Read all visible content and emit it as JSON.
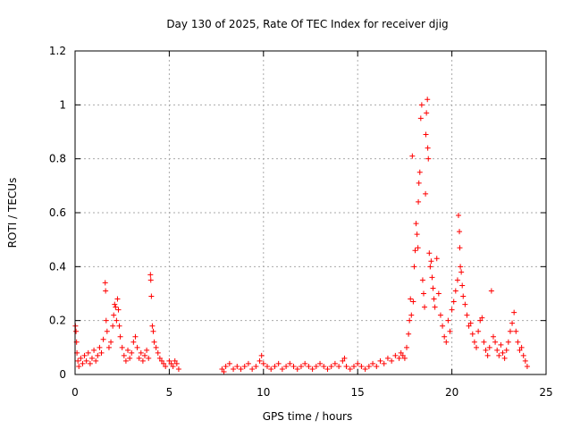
{
  "chart_data": {
    "type": "scatter",
    "title": "Day 130 of 2025, Rate Of TEC Index for receiver djig",
    "xlabel": "GPS time / hours",
    "ylabel": "ROTI / TECUs",
    "xlim": [
      0,
      25
    ],
    "ylim": [
      0,
      1.2
    ],
    "xticks": [
      0,
      5,
      10,
      15,
      20,
      25
    ],
    "xtick_labels": [
      "0",
      "5",
      "10",
      "15",
      "20",
      "25"
    ],
    "yticks": [
      0,
      0.2,
      0.4,
      0.6,
      0.8,
      1,
      1.2
    ],
    "ytick_labels": [
      "0",
      "0.2",
      "0.4",
      "0.6",
      "0.8",
      "1",
      "1.2"
    ],
    "grid": true,
    "marker": "+",
    "colors": {
      "series": "#ff0000",
      "grid": "#aaaaaa",
      "axis": "#000000"
    },
    "series": [
      {
        "points": [
          [
            0.02,
            0.18
          ],
          [
            0.05,
            0.16
          ],
          [
            0.08,
            0.12
          ],
          [
            0.1,
            0.08
          ],
          [
            0.15,
            0.05
          ],
          [
            0.2,
            0.03
          ],
          [
            0.3,
            0.06
          ],
          [
            0.4,
            0.04
          ],
          [
            0.5,
            0.07
          ],
          [
            0.6,
            0.05
          ],
          [
            0.7,
            0.08
          ],
          [
            0.8,
            0.04
          ],
          [
            0.9,
            0.06
          ],
          [
            1.0,
            0.09
          ],
          [
            1.1,
            0.05
          ],
          [
            1.2,
            0.07
          ],
          [
            1.3,
            0.1
          ],
          [
            1.4,
            0.08
          ],
          [
            1.5,
            0.13
          ],
          [
            1.6,
            0.34
          ],
          [
            1.62,
            0.31
          ],
          [
            1.65,
            0.2
          ],
          [
            1.7,
            0.16
          ],
          [
            1.8,
            0.1
          ],
          [
            1.9,
            0.12
          ],
          [
            2.0,
            0.18
          ],
          [
            2.05,
            0.22
          ],
          [
            2.1,
            0.26
          ],
          [
            2.15,
            0.25
          ],
          [
            2.2,
            0.2
          ],
          [
            2.25,
            0.28
          ],
          [
            2.3,
            0.24
          ],
          [
            2.35,
            0.18
          ],
          [
            2.4,
            0.14
          ],
          [
            2.5,
            0.1
          ],
          [
            2.6,
            0.07
          ],
          [
            2.7,
            0.05
          ],
          [
            2.8,
            0.09
          ],
          [
            2.9,
            0.06
          ],
          [
            3.0,
            0.08
          ],
          [
            3.1,
            0.12
          ],
          [
            3.2,
            0.14
          ],
          [
            3.3,
            0.1
          ],
          [
            3.4,
            0.06
          ],
          [
            3.5,
            0.08
          ],
          [
            3.6,
            0.05
          ],
          [
            3.7,
            0.07
          ],
          [
            3.8,
            0.09
          ],
          [
            3.9,
            0.06
          ],
          [
            4.0,
            0.37
          ],
          [
            4.02,
            0.35
          ],
          [
            4.05,
            0.29
          ],
          [
            4.1,
            0.18
          ],
          [
            4.15,
            0.16
          ],
          [
            4.2,
            0.12
          ],
          [
            4.3,
            0.1
          ],
          [
            4.4,
            0.08
          ],
          [
            4.5,
            0.06
          ],
          [
            4.6,
            0.05
          ],
          [
            4.7,
            0.04
          ],
          [
            4.8,
            0.03
          ],
          [
            5.0,
            0.05
          ],
          [
            5.1,
            0.04
          ],
          [
            5.2,
            0.03
          ],
          [
            5.3,
            0.05
          ],
          [
            5.4,
            0.04
          ],
          [
            5.5,
            0.02
          ],
          [
            7.8,
            0.02
          ],
          [
            7.9,
            0.01
          ],
          [
            8.0,
            0.03
          ],
          [
            8.2,
            0.04
          ],
          [
            8.4,
            0.02
          ],
          [
            8.6,
            0.03
          ],
          [
            8.8,
            0.02
          ],
          [
            9.0,
            0.03
          ],
          [
            9.2,
            0.04
          ],
          [
            9.4,
            0.02
          ],
          [
            9.6,
            0.03
          ],
          [
            9.8,
            0.05
          ],
          [
            9.9,
            0.07
          ],
          [
            10.0,
            0.04
          ],
          [
            10.2,
            0.03
          ],
          [
            10.4,
            0.02
          ],
          [
            10.6,
            0.03
          ],
          [
            10.8,
            0.04
          ],
          [
            11.0,
            0.02
          ],
          [
            11.2,
            0.03
          ],
          [
            11.4,
            0.04
          ],
          [
            11.6,
            0.03
          ],
          [
            11.8,
            0.02
          ],
          [
            12.0,
            0.03
          ],
          [
            12.2,
            0.04
          ],
          [
            12.4,
            0.03
          ],
          [
            12.6,
            0.02
          ],
          [
            12.8,
            0.03
          ],
          [
            13.0,
            0.04
          ],
          [
            13.2,
            0.03
          ],
          [
            13.4,
            0.02
          ],
          [
            13.6,
            0.03
          ],
          [
            13.8,
            0.04
          ],
          [
            14.0,
            0.03
          ],
          [
            14.2,
            0.05
          ],
          [
            14.3,
            0.06
          ],
          [
            14.4,
            0.03
          ],
          [
            14.6,
            0.02
          ],
          [
            14.8,
            0.03
          ],
          [
            15.0,
            0.04
          ],
          [
            15.2,
            0.03
          ],
          [
            15.4,
            0.02
          ],
          [
            15.6,
            0.03
          ],
          [
            15.8,
            0.04
          ],
          [
            16.0,
            0.03
          ],
          [
            16.2,
            0.05
          ],
          [
            16.4,
            0.04
          ],
          [
            16.6,
            0.06
          ],
          [
            16.8,
            0.05
          ],
          [
            17.0,
            0.07
          ],
          [
            17.2,
            0.06
          ],
          [
            17.3,
            0.08
          ],
          [
            17.4,
            0.07
          ],
          [
            17.5,
            0.06
          ],
          [
            17.6,
            0.1
          ],
          [
            17.7,
            0.15
          ],
          [
            17.75,
            0.2
          ],
          [
            17.8,
            0.28
          ],
          [
            17.85,
            0.22
          ],
          [
            17.9,
            0.81
          ],
          [
            17.95,
            0.27
          ],
          [
            18.0,
            0.4
          ],
          [
            18.05,
            0.46
          ],
          [
            18.1,
            0.56
          ],
          [
            18.15,
            0.52
          ],
          [
            18.2,
            0.47
          ],
          [
            18.22,
            0.64
          ],
          [
            18.25,
            0.71
          ],
          [
            18.3,
            0.75
          ],
          [
            18.35,
            0.95
          ],
          [
            18.4,
            1.0
          ],
          [
            18.45,
            0.35
          ],
          [
            18.5,
            0.3
          ],
          [
            18.55,
            0.25
          ],
          [
            18.6,
            0.67
          ],
          [
            18.62,
            0.89
          ],
          [
            18.65,
            0.97
          ],
          [
            18.7,
            1.02
          ],
          [
            18.72,
            0.84
          ],
          [
            18.75,
            0.8
          ],
          [
            18.8,
            0.45
          ],
          [
            18.85,
            0.4
          ],
          [
            18.9,
            0.42
          ],
          [
            18.95,
            0.36
          ],
          [
            19.0,
            0.32
          ],
          [
            19.05,
            0.28
          ],
          [
            19.1,
            0.25
          ],
          [
            19.2,
            0.43
          ],
          [
            19.3,
            0.3
          ],
          [
            19.4,
            0.22
          ],
          [
            19.5,
            0.18
          ],
          [
            19.6,
            0.14
          ],
          [
            19.7,
            0.12
          ],
          [
            19.8,
            0.2
          ],
          [
            19.9,
            0.16
          ],
          [
            20.0,
            0.24
          ],
          [
            20.1,
            0.27
          ],
          [
            20.2,
            0.31
          ],
          [
            20.3,
            0.35
          ],
          [
            20.35,
            0.59
          ],
          [
            20.4,
            0.53
          ],
          [
            20.42,
            0.47
          ],
          [
            20.45,
            0.4
          ],
          [
            20.5,
            0.38
          ],
          [
            20.55,
            0.33
          ],
          [
            20.6,
            0.29
          ],
          [
            20.7,
            0.26
          ],
          [
            20.8,
            0.22
          ],
          [
            20.9,
            0.18
          ],
          [
            21.0,
            0.19
          ],
          [
            21.1,
            0.15
          ],
          [
            21.2,
            0.12
          ],
          [
            21.3,
            0.1
          ],
          [
            21.4,
            0.16
          ],
          [
            21.5,
            0.2
          ],
          [
            21.6,
            0.21
          ],
          [
            21.7,
            0.12
          ],
          [
            21.8,
            0.09
          ],
          [
            21.9,
            0.07
          ],
          [
            22.0,
            0.1
          ],
          [
            22.1,
            0.31
          ],
          [
            22.2,
            0.14
          ],
          [
            22.3,
            0.12
          ],
          [
            22.4,
            0.09
          ],
          [
            22.5,
            0.07
          ],
          [
            22.6,
            0.11
          ],
          [
            22.7,
            0.08
          ],
          [
            22.8,
            0.06
          ],
          [
            22.9,
            0.09
          ],
          [
            23.0,
            0.12
          ],
          [
            23.1,
            0.16
          ],
          [
            23.2,
            0.19
          ],
          [
            23.3,
            0.23
          ],
          [
            23.4,
            0.16
          ],
          [
            23.5,
            0.12
          ],
          [
            23.6,
            0.09
          ],
          [
            23.7,
            0.1
          ],
          [
            23.8,
            0.07
          ],
          [
            23.9,
            0.05
          ],
          [
            24.0,
            0.03
          ]
        ]
      }
    ]
  }
}
